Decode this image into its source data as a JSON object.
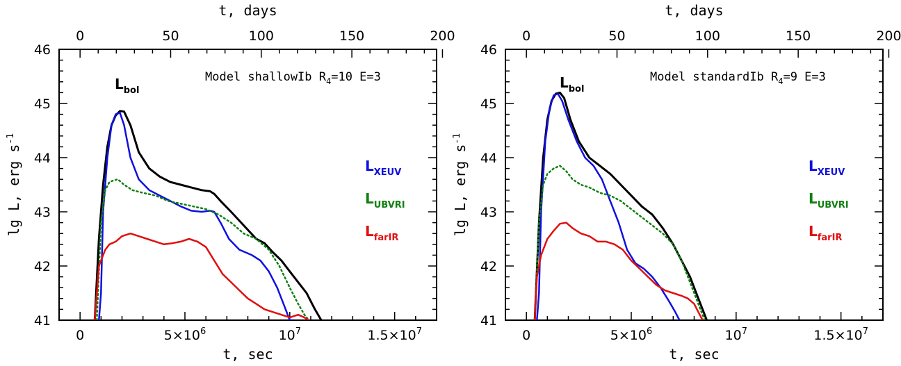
{
  "chart_data": [
    {
      "type": "line",
      "annotation": {
        "text": "Model shallowIb  R",
        "sub": "4",
        "rest": "=10 E=3"
      },
      "xlabel": "t, sec",
      "xlabel_top": "t, days",
      "ylabel": "lg L, erg s",
      "ylabel_sup": "-1",
      "xlim": [
        -0.1,
        1.7
      ],
      "xlim_unit": "1e7 sec",
      "ylim": [
        41,
        46
      ],
      "x_ticks": [
        "0",
        "5×10",
        "10",
        "1.5×10"
      ],
      "x_ticks_sup": [
        "",
        "6",
        "7",
        "7"
      ],
      "x_tick_values": [
        0,
        0.5,
        1.0,
        1.5
      ],
      "top_ticks": [
        "0",
        "50",
        "100",
        "150",
        "200"
      ],
      "top_tick_days": [
        0,
        50,
        100,
        150,
        200
      ],
      "y_ticks": [
        "41",
        "42",
        "43",
        "44",
        "45",
        "46"
      ],
      "series": [
        {
          "name": "L",
          "sub": "bol",
          "color": "#000000",
          "style": "solid",
          "x": [
            0.07,
            0.09,
            0.11,
            0.13,
            0.15,
            0.17,
            0.19,
            0.21,
            0.24,
            0.28,
            0.33,
            0.38,
            0.43,
            0.48,
            0.53,
            0.58,
            0.62,
            0.64,
            0.67,
            0.72,
            0.78,
            0.84,
            0.88,
            0.92,
            0.96,
            1.0,
            1.04,
            1.08,
            1.12,
            1.15
          ],
          "y": [
            41.0,
            42.5,
            43.5,
            44.2,
            44.6,
            44.78,
            44.86,
            44.85,
            44.6,
            44.1,
            43.8,
            43.65,
            43.55,
            43.5,
            43.45,
            43.4,
            43.38,
            43.33,
            43.2,
            43.0,
            42.75,
            42.5,
            42.42,
            42.25,
            42.1,
            41.9,
            41.7,
            41.5,
            41.2,
            41.0
          ]
        },
        {
          "name": "L",
          "sub": "XEUV",
          "color": "#1010e0",
          "style": "solid",
          "x": [
            0.08,
            0.09,
            0.1,
            0.11,
            0.13,
            0.15,
            0.17,
            0.19,
            0.21,
            0.24,
            0.28,
            0.33,
            0.38,
            0.43,
            0.48,
            0.53,
            0.58,
            0.62,
            0.64,
            0.67,
            0.71,
            0.76,
            0.82,
            0.86,
            0.9,
            0.94,
            0.97,
            1.0,
            1.02
          ],
          "y": [
            41.0,
            41.0,
            41.5,
            43.0,
            44.0,
            44.6,
            44.8,
            44.83,
            44.6,
            44.0,
            43.6,
            43.4,
            43.3,
            43.2,
            43.1,
            43.02,
            43.0,
            43.02,
            43.0,
            42.8,
            42.5,
            42.3,
            42.2,
            42.1,
            41.9,
            41.6,
            41.3,
            41.0,
            41.0
          ]
        },
        {
          "name": "L",
          "sub": "UBVRI",
          "color": "#108010",
          "style": "dotted",
          "x": [
            0.08,
            0.1,
            0.12,
            0.14,
            0.16,
            0.18,
            0.21,
            0.25,
            0.3,
            0.36,
            0.42,
            0.48,
            0.54,
            0.6,
            0.66,
            0.72,
            0.78,
            0.84,
            0.9,
            0.95,
            1.0,
            1.04,
            1.07,
            1.09
          ],
          "y": [
            41.0,
            42.8,
            43.4,
            43.55,
            43.58,
            43.6,
            43.5,
            43.4,
            43.35,
            43.3,
            43.2,
            43.15,
            43.1,
            43.05,
            42.95,
            42.8,
            42.6,
            42.5,
            42.3,
            42.0,
            41.6,
            41.3,
            41.1,
            41.0
          ]
        },
        {
          "name": "L",
          "sub": "farIR",
          "color": "#e01010",
          "style": "solid",
          "x": [
            0.07,
            0.08,
            0.09,
            0.1,
            0.12,
            0.14,
            0.17,
            0.2,
            0.24,
            0.28,
            0.32,
            0.36,
            0.4,
            0.44,
            0.48,
            0.52,
            0.56,
            0.6,
            0.64,
            0.68,
            0.72,
            0.76,
            0.8,
            0.84,
            0.88,
            0.92,
            0.96,
            1.0,
            1.04,
            1.07,
            1.09
          ],
          "y": [
            41.0,
            41.5,
            42.0,
            42.1,
            42.3,
            42.4,
            42.45,
            42.55,
            42.6,
            42.55,
            42.5,
            42.45,
            42.4,
            42.42,
            42.45,
            42.5,
            42.45,
            42.35,
            42.1,
            41.85,
            41.7,
            41.55,
            41.4,
            41.3,
            41.2,
            41.15,
            41.1,
            41.05,
            41.1,
            41.05,
            41.0
          ]
        }
      ]
    },
    {
      "type": "line",
      "annotation": {
        "text": "Model standardIb  R",
        "sub": "4",
        "rest": "=9 E=3"
      },
      "xlabel": "t, sec",
      "xlabel_top": "t, days",
      "ylabel": "lg L, erg s",
      "ylabel_sup": "-1",
      "xlim": [
        -0.1,
        1.7
      ],
      "xlim_unit": "1e7 sec",
      "ylim": [
        41,
        46
      ],
      "x_ticks": [
        "0",
        "5×10",
        "10",
        "1.5×10"
      ],
      "x_ticks_sup": [
        "",
        "6",
        "7",
        "7"
      ],
      "x_tick_values": [
        0,
        0.5,
        1.0,
        1.5
      ],
      "top_ticks": [
        "0",
        "50",
        "100",
        "150",
        "200"
      ],
      "top_tick_days": [
        0,
        50,
        100,
        150,
        200
      ],
      "y_ticks": [
        "41",
        "42",
        "43",
        "44",
        "45",
        "46"
      ],
      "series": [
        {
          "name": "L",
          "sub": "bol",
          "color": "#000000",
          "style": "solid",
          "x": [
            0.04,
            0.06,
            0.08,
            0.1,
            0.12,
            0.14,
            0.16,
            0.18,
            0.21,
            0.25,
            0.3,
            0.35,
            0.4,
            0.45,
            0.5,
            0.55,
            0.6,
            0.65,
            0.7,
            0.74,
            0.78,
            0.81,
            0.84,
            0.86
          ],
          "y": [
            41.0,
            42.8,
            44.0,
            44.7,
            45.05,
            45.18,
            45.2,
            45.1,
            44.7,
            44.3,
            44.0,
            43.85,
            43.7,
            43.5,
            43.3,
            43.1,
            42.95,
            42.7,
            42.4,
            42.1,
            41.8,
            41.5,
            41.2,
            41.0
          ]
        },
        {
          "name": "L",
          "sub": "XEUV",
          "color": "#1010e0",
          "style": "solid",
          "x": [
            0.05,
            0.06,
            0.07,
            0.09,
            0.11,
            0.13,
            0.15,
            0.17,
            0.2,
            0.24,
            0.28,
            0.32,
            0.36,
            0.4,
            0.44,
            0.48,
            0.52,
            0.56,
            0.6,
            0.64,
            0.68,
            0.71,
            0.73
          ],
          "y": [
            41.0,
            41.5,
            43.0,
            44.3,
            44.9,
            45.15,
            45.18,
            45.05,
            44.7,
            44.3,
            44.0,
            43.85,
            43.6,
            43.2,
            42.8,
            42.3,
            42.05,
            41.95,
            41.8,
            41.6,
            41.35,
            41.15,
            41.0
          ]
        },
        {
          "name": "L",
          "sub": "UBVRI",
          "color": "#108010",
          "style": "dotted",
          "x": [
            0.04,
            0.06,
            0.08,
            0.1,
            0.13,
            0.16,
            0.19,
            0.22,
            0.26,
            0.3,
            0.35,
            0.4,
            0.45,
            0.5,
            0.55,
            0.6,
            0.65,
            0.7,
            0.74,
            0.78,
            0.81,
            0.83,
            0.85
          ],
          "y": [
            41.0,
            42.8,
            43.5,
            43.7,
            43.8,
            43.85,
            43.75,
            43.6,
            43.5,
            43.45,
            43.35,
            43.3,
            43.2,
            43.05,
            42.9,
            42.75,
            42.6,
            42.4,
            42.1,
            41.7,
            41.4,
            41.2,
            41.0
          ]
        },
        {
          "name": "L",
          "sub": "farIR",
          "color": "#e01010",
          "style": "solid",
          "x": [
            0.04,
            0.05,
            0.07,
            0.1,
            0.13,
            0.16,
            0.19,
            0.22,
            0.26,
            0.3,
            0.34,
            0.38,
            0.42,
            0.46,
            0.5,
            0.54,
            0.58,
            0.62,
            0.66,
            0.7,
            0.74,
            0.77,
            0.8,
            0.82,
            0.84
          ],
          "y": [
            41.0,
            41.8,
            42.2,
            42.5,
            42.65,
            42.78,
            42.8,
            42.7,
            42.6,
            42.55,
            42.45,
            42.45,
            42.4,
            42.3,
            42.1,
            41.95,
            41.8,
            41.65,
            41.55,
            41.5,
            41.45,
            41.4,
            41.3,
            41.15,
            41.0
          ]
        }
      ]
    }
  ]
}
